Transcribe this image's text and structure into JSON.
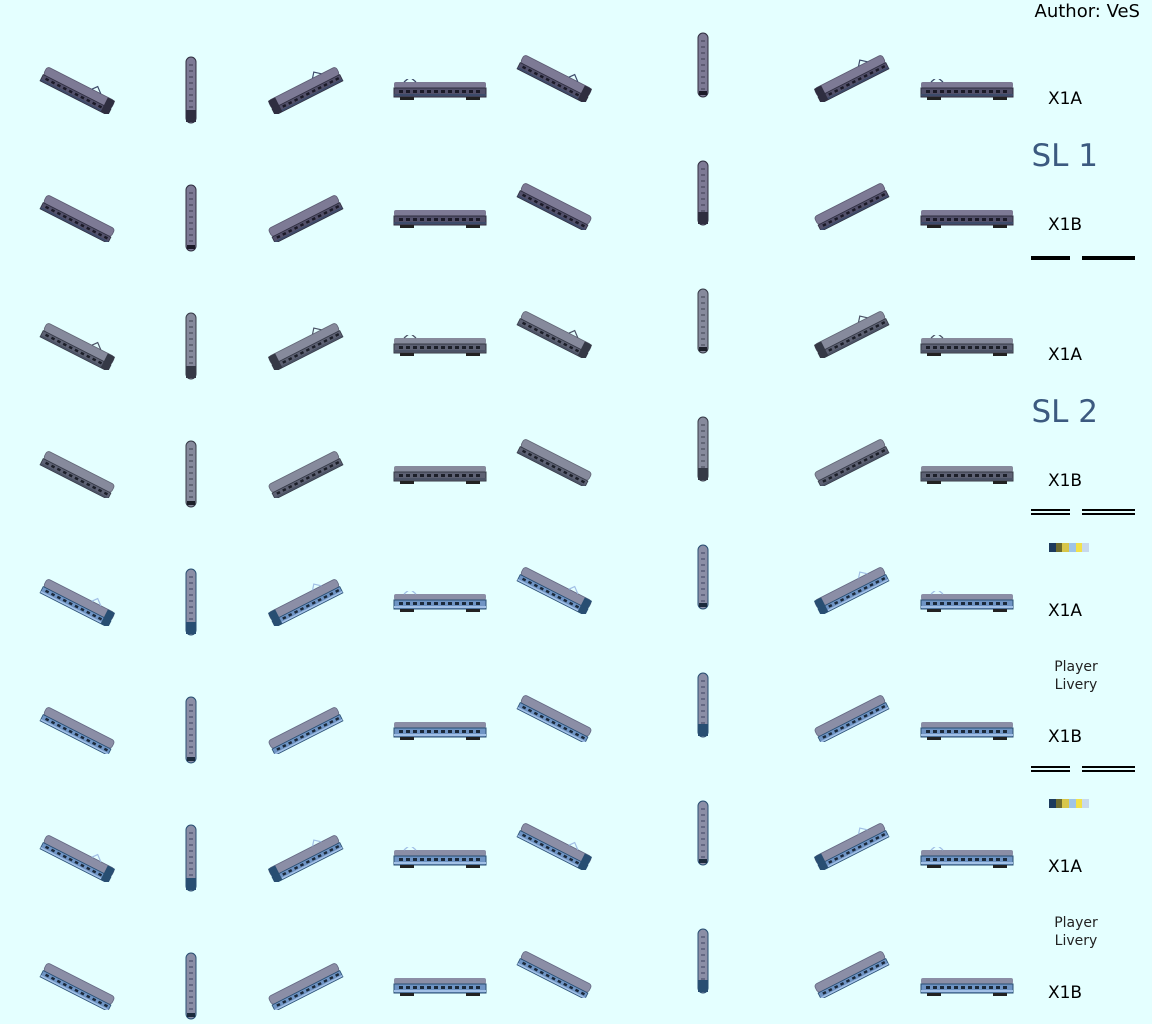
{
  "author": "Author: VeS",
  "colors": {
    "background": "#e4ffff",
    "schemes": {
      "purple": {
        "roof": "#7d7a95",
        "roofDark": "#5d5b73",
        "body": "#52506a",
        "side": "#2f2e40",
        "window": "#1b1a28",
        "stripe": "#3d4b6a"
      },
      "grey": {
        "roof": "#868a9c",
        "roofDark": "#626676",
        "body": "#5d6173",
        "side": "#353946",
        "window": "#1c1f29",
        "stripe": "#4b5366"
      },
      "blue": {
        "roof": "#8b8ea6",
        "roofDark": "#646883",
        "body": "#6f94c4",
        "side": "#284e72",
        "window": "#1b2a3c",
        "stripe": "#a2c0e6"
      }
    }
  },
  "rows": [
    {
      "label": "X1A",
      "scheme": "purple",
      "pantograph": true
    },
    {
      "label": "X1B",
      "scheme": "purple",
      "pantograph": false
    },
    {
      "label": "X1A",
      "scheme": "grey",
      "pantograph": true
    },
    {
      "label": "X1B",
      "scheme": "grey",
      "pantograph": false
    },
    {
      "label": "X1A",
      "scheme": "blue",
      "pantograph": true
    },
    {
      "label": "X1B",
      "scheme": "blue",
      "pantograph": false
    },
    {
      "label": "X1A",
      "scheme": "blue",
      "pantograph": true
    },
    {
      "label": "X1B",
      "scheme": "blue",
      "pantograph": false
    }
  ],
  "sidebar": {
    "sl1": "SL 1",
    "sl2": "SL 2",
    "player_livery_1": "Player\nLivery",
    "player_livery_2": "Player\nLivery"
  },
  "swatch_colors": [
    "#1d3a5c",
    "#6e6b2d",
    "#d7c64a",
    "#9fc4e8",
    "#f2e14a",
    "#c8d9ec"
  ]
}
